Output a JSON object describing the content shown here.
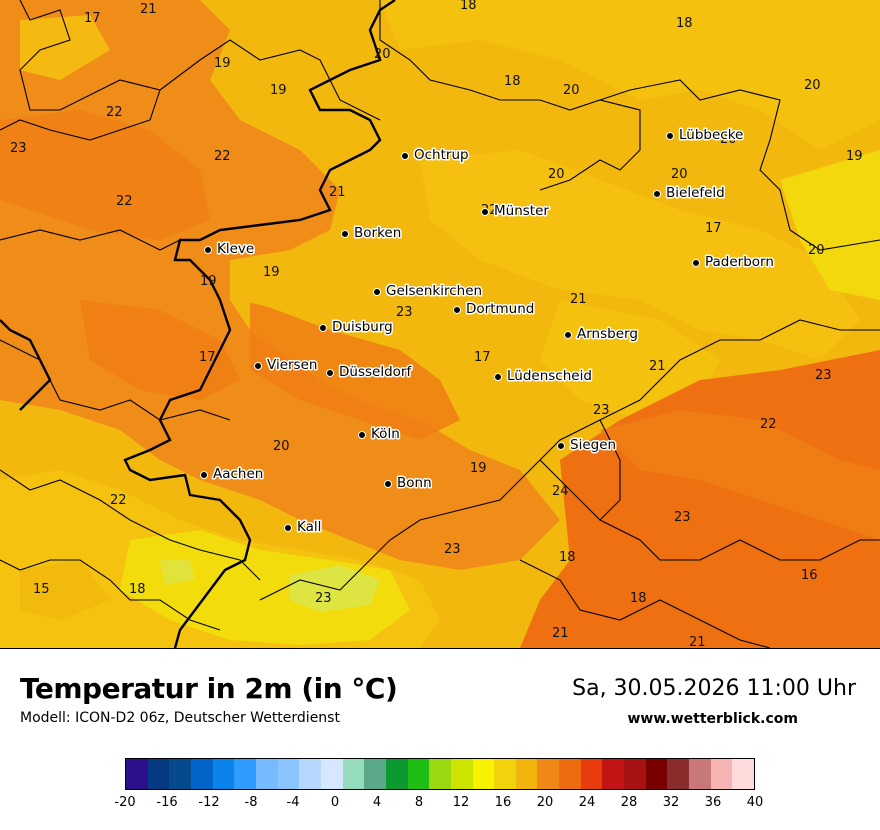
{
  "title": "Temperatur in 2m (in °C)",
  "model": "Modell: ICON-D2 06z, Deutscher Wetterdienst",
  "datetime": "Sa, 30.05.2026 11:00 Uhr",
  "website": "www.wetterblick.com",
  "colors": {
    "t15": "#f2dc0c",
    "t18": "#f5c210",
    "t20": "#f2b80e",
    "t22": "#f08c18",
    "t23": "#f07e14",
    "t24": "#ee7010",
    "light_green": "#d6e85a",
    "border": "#000000"
  },
  "cities": [
    {
      "name": "Ochtrup"
    },
    {
      "name": "Lübbecke"
    },
    {
      "name": "Bielefeld"
    },
    {
      "name": "Münster"
    },
    {
      "name": "Borken"
    },
    {
      "name": "Kleve"
    },
    {
      "name": "Paderborn"
    },
    {
      "name": "Gelsenkirchen"
    },
    {
      "name": "Dortmund"
    },
    {
      "name": "Duisburg"
    },
    {
      "name": "Arnsberg"
    },
    {
      "name": "Viersen"
    },
    {
      "name": "Düsseldorf"
    },
    {
      "name": "Lüdenscheid"
    },
    {
      "name": "Köln"
    },
    {
      "name": "Siegen"
    },
    {
      "name": "Aachen"
    },
    {
      "name": "Bonn"
    },
    {
      "name": "Kall"
    }
  ],
  "temps": [
    "17",
    "21",
    "18",
    "18",
    "20",
    "19",
    "19",
    "18",
    "20",
    "20",
    "22",
    "23",
    "22",
    "20",
    "20",
    "19",
    "22",
    "21",
    "20",
    "17",
    "22",
    "19",
    "19",
    "20",
    "21",
    "23",
    "17",
    "17",
    "21",
    "23",
    "23",
    "22",
    "20",
    "19",
    "22",
    "24",
    "23",
    "23",
    "18",
    "16",
    "15",
    "18",
    "23",
    "18",
    "21"
  ],
  "legend": {
    "colors": [
      "#2c0f8a",
      "#053a82",
      "#064a8e",
      "#0064c8",
      "#0a84ec",
      "#2e9cff",
      "#78baff",
      "#8cc4ff",
      "#b6d8ff",
      "#d6e8ff",
      "#94dcbc",
      "#5aaa8a",
      "#0c9a30",
      "#1ebe14",
      "#9ad812",
      "#cce400",
      "#f6f200",
      "#f2d20c",
      "#f2b50e",
      "#f08818",
      "#ee6c10",
      "#e83c0c",
      "#c21414",
      "#a81212",
      "#7a0000",
      "#8a2c2c",
      "#c87878",
      "#f6b4b4",
      "#ffdcdc"
    ],
    "ticks": [
      "-20",
      "-16",
      "-12",
      "-8",
      "-4",
      "0",
      "4",
      "8",
      "12",
      "16",
      "20",
      "24",
      "28",
      "32",
      "36",
      "40"
    ]
  }
}
